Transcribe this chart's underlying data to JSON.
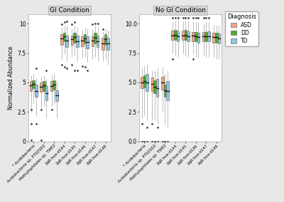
{
  "panel_titles": [
    "GI Condition",
    "No GI Condition"
  ],
  "x_labels": [
    "* Acidobacteria",
    "Acidobacteria sp. PTS2SD2",
    "Methylophilales sp. TWE2",
    "2qR-hsa-d144",
    "2qR-hsa-d145",
    "2qR-hsa-d146",
    "2qR-hsa-d147",
    "2qR-hsa-d148"
  ],
  "diagnosis": [
    "ASD",
    "DD",
    "TD"
  ],
  "colors": {
    "ASD": "#F4A582",
    "DD": "#4DAC26",
    "TD": "#92C5DE"
  },
  "ylabel": "Normalized Abundance",
  "ylim": [
    0.0,
    10.8
  ],
  "yticks": [
    0.0,
    2.5,
    5.0,
    7.5,
    10.0
  ],
  "gi_data": {
    "ASD": {
      "* Acidobacteria": {
        "q1": 4.3,
        "med": 4.75,
        "q3": 5.1,
        "lo": 2.5,
        "hi": 5.6,
        "out": [
          2.7,
          1.5,
          0.1
        ]
      },
      "Acidobacteria sp. PTS2SD2": {
        "q1": 4.2,
        "med": 4.65,
        "q3": 5.0,
        "lo": 2.8,
        "hi": 5.4,
        "out": [
          2.7,
          0.1
        ]
      },
      "Methylophilales sp. TWE2": {
        "q1": 4.3,
        "med": 4.7,
        "q3": 5.1,
        "lo": 3.0,
        "hi": 5.6,
        "out": [
          2.7
        ]
      },
      "2qR-hsa-d144": {
        "q1": 8.2,
        "med": 8.75,
        "q3": 9.1,
        "lo": 7.0,
        "hi": 9.7,
        "out": [
          9.95,
          6.5
        ]
      },
      "2qR-hsa-d145": {
        "q1": 8.2,
        "med": 8.65,
        "q3": 9.0,
        "lo": 7.2,
        "hi": 9.6,
        "out": [
          9.95,
          6.5
        ]
      },
      "2qR-hsa-d146": {
        "q1": 8.1,
        "med": 8.55,
        "q3": 8.9,
        "lo": 7.1,
        "hi": 9.4,
        "out": [
          6.4
        ]
      },
      "2qR-hsa-d147": {
        "q1": 8.1,
        "med": 8.55,
        "q3": 8.9,
        "lo": 7.0,
        "hi": 9.5,
        "out": [
          9.95
        ]
      },
      "2qR-hsa-d148": {
        "q1": 7.8,
        "med": 8.3,
        "q3": 8.8,
        "lo": 6.8,
        "hi": 9.3,
        "out": [
          9.5
        ]
      }
    },
    "DD": {
      "* Acidobacteria": {
        "q1": 4.5,
        "med": 4.85,
        "q3": 5.2,
        "lo": 3.2,
        "hi": 5.8,
        "out": []
      },
      "Acidobacteria sp. PTS2SD2": {
        "q1": 4.3,
        "med": 4.75,
        "q3": 5.1,
        "lo": 3.0,
        "hi": 5.6,
        "out": []
      },
      "Methylophilales sp. TWE2": {
        "q1": 4.4,
        "med": 4.8,
        "q3": 5.2,
        "lo": 3.2,
        "hi": 5.7,
        "out": []
      },
      "2qR-hsa-d144": {
        "q1": 8.5,
        "med": 8.9,
        "q3": 9.25,
        "lo": 7.4,
        "hi": 9.8,
        "out": [
          10.1,
          6.3
        ]
      },
      "2qR-hsa-d145": {
        "q1": 8.4,
        "med": 8.85,
        "q3": 9.2,
        "lo": 7.3,
        "hi": 9.9,
        "out": [
          10.1,
          6.0
        ]
      },
      "2qR-hsa-d146": {
        "q1": 8.3,
        "med": 8.75,
        "q3": 9.1,
        "lo": 7.2,
        "hi": 9.7,
        "out": [
          6.3
        ]
      },
      "2qR-hsa-d147": {
        "q1": 8.3,
        "med": 8.8,
        "q3": 9.2,
        "lo": 7.2,
        "hi": 9.8,
        "out": [
          10.0
        ]
      },
      "2qR-hsa-d148": {
        "q1": 8.2,
        "med": 8.7,
        "q3": 9.1,
        "lo": 7.0,
        "hi": 9.6,
        "out": []
      }
    },
    "TD": {
      "* Acidobacteria": {
        "q1": 3.8,
        "med": 4.3,
        "q3": 4.8,
        "lo": 2.2,
        "hi": 5.4,
        "out": [
          6.2,
          1.5
        ]
      },
      "Acidobacteria sp. PTS2SD2": {
        "q1": 3.5,
        "med": 4.1,
        "q3": 4.7,
        "lo": 2.0,
        "hi": 5.3,
        "out": [
          6.0
        ]
      },
      "Methylophilales sp. TWE2": {
        "q1": 3.4,
        "med": 3.9,
        "q3": 4.35,
        "lo": 2.0,
        "hi": 5.2,
        "out": []
      },
      "2qR-hsa-d144": {
        "q1": 8.0,
        "med": 8.55,
        "q3": 9.0,
        "lo": 6.8,
        "hi": 9.8,
        "out": [
          10.2,
          6.2
        ]
      },
      "2qR-hsa-d145": {
        "q1": 8.0,
        "med": 8.5,
        "q3": 9.0,
        "lo": 6.8,
        "hi": 9.7,
        "out": [
          6.0
        ]
      },
      "2qR-hsa-d146": {
        "q1": 7.9,
        "med": 8.45,
        "q3": 8.9,
        "lo": 6.7,
        "hi": 9.6,
        "out": [
          6.0
        ]
      },
      "2qR-hsa-d147": {
        "q1": 8.0,
        "med": 8.5,
        "q3": 9.0,
        "lo": 6.8,
        "hi": 9.7,
        "out": [
          10.0
        ]
      },
      "2qR-hsa-d148": {
        "q1": 7.8,
        "med": 8.3,
        "q3": 8.8,
        "lo": 6.5,
        "hi": 9.4,
        "out": []
      }
    }
  },
  "nogi_data": {
    "ASD": {
      "* Acidobacteria": {
        "q1": 4.5,
        "med": 5.0,
        "q3": 5.5,
        "lo": 2.0,
        "hi": 6.2,
        "out": [
          1.5,
          0.0
        ]
      },
      "Acidobacteria sp. PTS2SD2": {
        "q1": 4.3,
        "med": 4.85,
        "q3": 5.4,
        "lo": 1.8,
        "hi": 6.0,
        "out": [
          1.5,
          0.0
        ]
      },
      "Methylophilales sp. TWE2": {
        "q1": 4.4,
        "med": 5.0,
        "q3": 5.5,
        "lo": 2.5,
        "hi": 6.3,
        "out": [
          0.0
        ]
      },
      "2qR-hsa-d144": {
        "q1": 8.6,
        "med": 9.0,
        "q3": 9.4,
        "lo": 7.5,
        "hi": 10.2,
        "out": [
          10.5,
          7.0
        ]
      },
      "2qR-hsa-d145": {
        "q1": 8.6,
        "med": 9.0,
        "q3": 9.4,
        "lo": 7.5,
        "hi": 10.2,
        "out": [
          10.5
        ]
      },
      "2qR-hsa-d146": {
        "q1": 8.5,
        "med": 9.0,
        "q3": 9.3,
        "lo": 7.4,
        "hi": 10.1,
        "out": [
          10.5,
          7.0
        ]
      },
      "2qR-hsa-d147": {
        "q1": 8.5,
        "med": 8.95,
        "q3": 9.3,
        "lo": 7.3,
        "hi": 10.0,
        "out": [
          10.5
        ]
      },
      "2qR-hsa-d148": {
        "q1": 8.4,
        "med": 8.85,
        "q3": 9.2,
        "lo": 7.2,
        "hi": 9.9,
        "out": []
      }
    },
    "DD": {
      "* Acidobacteria": {
        "q1": 4.6,
        "med": 5.1,
        "q3": 5.6,
        "lo": 2.2,
        "hi": 6.4,
        "out": [
          0.0
        ]
      },
      "Acidobacteria sp. PTS2SD2": {
        "q1": 4.1,
        "med": 4.65,
        "q3": 5.2,
        "lo": 1.8,
        "hi": 6.0,
        "out": [
          0.0
        ]
      },
      "Methylophilales sp. TWE2": {
        "q1": 3.8,
        "med": 4.35,
        "q3": 4.8,
        "lo": 1.5,
        "hi": 5.7,
        "out": [
          0.0
        ]
      },
      "2qR-hsa-d144": {
        "q1": 8.6,
        "med": 9.05,
        "q3": 9.45,
        "lo": 7.3,
        "hi": 10.2,
        "out": [
          10.5
        ]
      },
      "2qR-hsa-d145": {
        "q1": 8.6,
        "med": 9.05,
        "q3": 9.45,
        "lo": 7.3,
        "hi": 10.3,
        "out": [
          10.5
        ]
      },
      "2qR-hsa-d146": {
        "q1": 8.5,
        "med": 8.95,
        "q3": 9.3,
        "lo": 7.2,
        "hi": 10.1,
        "out": [
          10.5
        ]
      },
      "2qR-hsa-d147": {
        "q1": 8.5,
        "med": 8.95,
        "q3": 9.3,
        "lo": 7.1,
        "hi": 10.1,
        "out": [
          10.5
        ]
      },
      "2qR-hsa-d148": {
        "q1": 8.4,
        "med": 8.85,
        "q3": 9.2,
        "lo": 7.0,
        "hi": 9.9,
        "out": []
      }
    },
    "TD": {
      "* Acidobacteria": {
        "q1": 4.3,
        "med": 5.0,
        "q3": 5.7,
        "lo": 1.8,
        "hi": 6.5,
        "out": [
          1.2,
          0.0
        ]
      },
      "Acidobacteria sp. PTS2SD2": {
        "q1": 3.8,
        "med": 4.5,
        "q3": 5.3,
        "lo": 1.5,
        "hi": 6.2,
        "out": [
          1.2,
          0.0
        ]
      },
      "Methylophilales sp. TWE2": {
        "q1": 3.5,
        "med": 4.3,
        "q3": 5.1,
        "lo": 1.2,
        "hi": 6.0,
        "out": [
          0.0
        ]
      },
      "2qR-hsa-d144": {
        "q1": 8.5,
        "med": 8.95,
        "q3": 9.35,
        "lo": 7.2,
        "hi": 10.3,
        "out": [
          10.5
        ]
      },
      "2qR-hsa-d145": {
        "q1": 8.5,
        "med": 8.95,
        "q3": 9.35,
        "lo": 7.2,
        "hi": 10.2,
        "out": [
          10.5
        ]
      },
      "2qR-hsa-d146": {
        "q1": 8.4,
        "med": 8.85,
        "q3": 9.25,
        "lo": 7.1,
        "hi": 10.1,
        "out": [
          10.5
        ]
      },
      "2qR-hsa-d147": {
        "q1": 8.5,
        "med": 8.95,
        "q3": 9.35,
        "lo": 7.2,
        "hi": 10.2,
        "out": [
          10.5
        ]
      },
      "2qR-hsa-d148": {
        "q1": 8.3,
        "med": 8.75,
        "q3": 9.15,
        "lo": 7.0,
        "hi": 9.8,
        "out": []
      }
    }
  },
  "fig_bg": "#E8E8E8",
  "panel_bg": "#FFFFFF",
  "strip_bg": "#D3D3D3",
  "grid_color": "#FFFFFF",
  "box_width": 0.25,
  "legend_title": "Diagnosis"
}
